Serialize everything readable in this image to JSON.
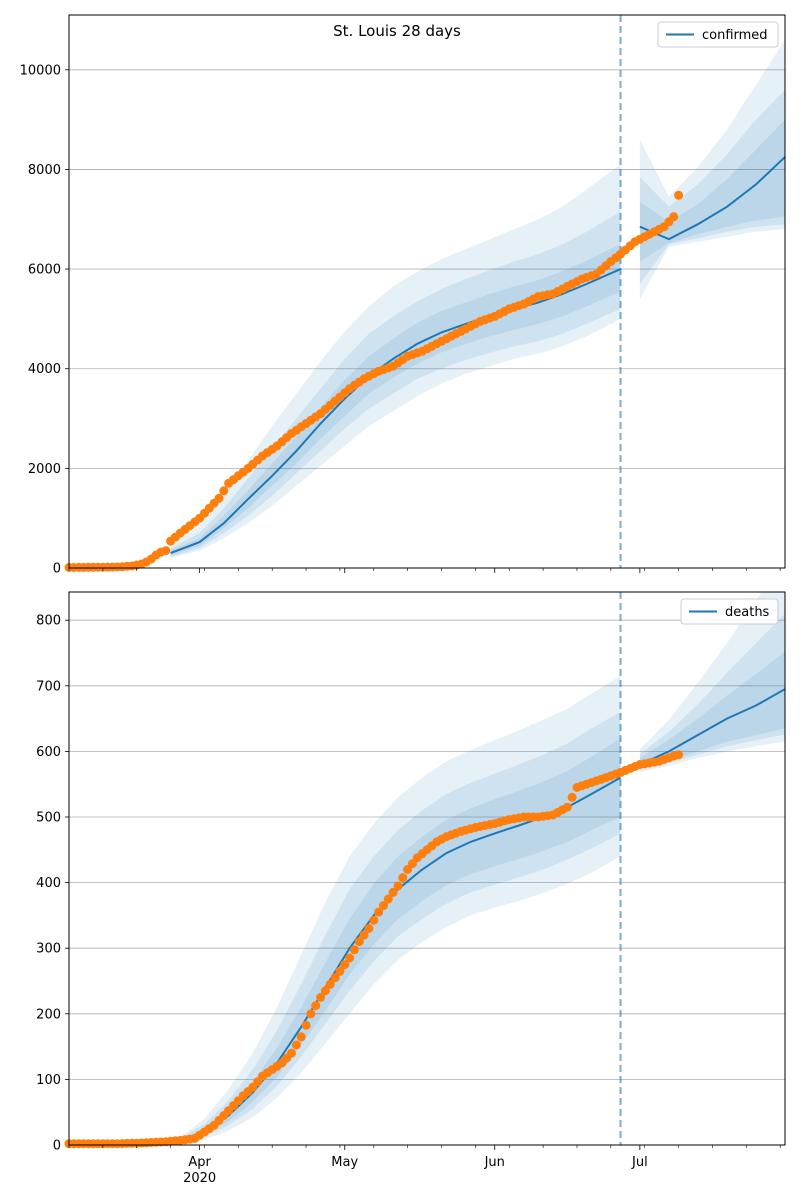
{
  "figure": {
    "title": "St. Louis 28 days"
  },
  "chart_data": [
    {
      "type": "line",
      "name": "confirmed-panel",
      "legend": "confirmed",
      "legend_position": "top-right",
      "ylim": [
        0,
        11100
      ],
      "yticks": [
        0,
        2000,
        4000,
        6000,
        8000,
        10000
      ],
      "xlim": [
        "2020-03-05",
        "2020-07-31"
      ],
      "xticks": [
        "Apr",
        "May",
        "Jun",
        "Jul"
      ],
      "xtick_year": "2020",
      "grid": "horizontal",
      "forecast_start": "2020-06-27",
      "colors": {
        "line": "#1f77b4",
        "band": "#1f77b4",
        "observed": "#ff7f0e",
        "vline": "#1f77b4"
      },
      "model": {
        "x": [
          "2020-03-26",
          "2020-04-01",
          "2020-04-06",
          "2020-04-11",
          "2020-04-16",
          "2020-04-21",
          "2020-04-26",
          "2020-05-01",
          "2020-05-06",
          "2020-05-11",
          "2020-05-16",
          "2020-05-21",
          "2020-05-26",
          "2020-05-31",
          "2020-06-05",
          "2020-06-10",
          "2020-06-15",
          "2020-06-20",
          "2020-06-27",
          "2020-07-01",
          "2020-07-07",
          "2020-07-13",
          "2020-07-19",
          "2020-07-25",
          "2020-07-31"
        ],
        "median": [
          300,
          520,
          900,
          1380,
          1850,
          2350,
          2900,
          3400,
          3850,
          4200,
          4500,
          4730,
          4900,
          5060,
          5200,
          5330,
          5500,
          5700,
          6000,
          6850,
          6600,
          6900,
          7250,
          7700,
          8250
        ],
        "band_50": [
          [
            250,
            350
          ],
          [
            450,
            600
          ],
          [
            800,
            1050
          ],
          [
            1200,
            1560
          ],
          [
            1650,
            2100
          ],
          [
            2100,
            2640
          ],
          [
            2600,
            3230
          ],
          [
            3050,
            3780
          ],
          [
            3500,
            4250
          ],
          [
            3820,
            4600
          ],
          [
            4100,
            4920
          ],
          [
            4330,
            5160
          ],
          [
            4500,
            5330
          ],
          [
            4650,
            5500
          ],
          [
            4780,
            5650
          ],
          [
            4900,
            5780
          ],
          [
            5050,
            5960
          ],
          [
            5250,
            6170
          ],
          [
            5550,
            6500
          ],
          [
            6150,
            7350
          ],
          [
            6520,
            6950
          ],
          [
            6700,
            7300
          ],
          [
            6850,
            7800
          ],
          [
            6980,
            8400
          ],
          [
            7050,
            9000
          ]
        ],
        "band_80": [
          [
            220,
            390
          ],
          [
            400,
            700
          ],
          [
            700,
            1200
          ],
          [
            1050,
            1800
          ],
          [
            1450,
            2400
          ],
          [
            1900,
            3000
          ],
          [
            2350,
            3600
          ],
          [
            2800,
            4200
          ],
          [
            3200,
            4700
          ],
          [
            3500,
            5050
          ],
          [
            3800,
            5350
          ],
          [
            4000,
            5600
          ],
          [
            4180,
            5800
          ],
          [
            4320,
            5980
          ],
          [
            4450,
            6150
          ],
          [
            4550,
            6300
          ],
          [
            4700,
            6500
          ],
          [
            4900,
            6750
          ],
          [
            5200,
            7150
          ],
          [
            5700,
            7850
          ],
          [
            6500,
            7250
          ],
          [
            6620,
            7700
          ],
          [
            6750,
            8300
          ],
          [
            6850,
            9000
          ],
          [
            6900,
            9600
          ]
        ],
        "band_95": [
          [
            200,
            450
          ],
          [
            350,
            850
          ],
          [
            600,
            1450
          ],
          [
            900,
            2150
          ],
          [
            1250,
            2850
          ],
          [
            1650,
            3500
          ],
          [
            2050,
            4150
          ],
          [
            2450,
            4750
          ],
          [
            2850,
            5250
          ],
          [
            3150,
            5650
          ],
          [
            3450,
            5950
          ],
          [
            3700,
            6200
          ],
          [
            3900,
            6400
          ],
          [
            4050,
            6600
          ],
          [
            4200,
            6800
          ],
          [
            4300,
            7000
          ],
          [
            4450,
            7250
          ],
          [
            4650,
            7600
          ],
          [
            5000,
            8100
          ],
          [
            5400,
            8600
          ],
          [
            6450,
            7450
          ],
          [
            6550,
            8050
          ],
          [
            6650,
            8800
          ],
          [
            6750,
            9700
          ],
          [
            6800,
            10600
          ]
        ]
      },
      "observed": {
        "x": [
          "2020-03-05",
          "2020-03-10",
          "2020-03-15",
          "2020-03-18",
          "2020-03-20",
          "2020-03-21",
          "2020-03-22",
          "2020-03-23",
          "2020-03-24",
          "2020-03-25",
          "2020-03-26",
          "2020-03-28",
          "2020-03-30",
          "2020-04-01",
          "2020-04-03",
          "2020-04-05",
          "2020-04-07",
          "2020-04-09",
          "2020-04-11",
          "2020-04-14",
          "2020-04-17",
          "2020-04-20",
          "2020-04-23",
          "2020-04-26",
          "2020-04-29",
          "2020-05-02",
          "2020-05-05",
          "2020-05-08",
          "2020-05-11",
          "2020-05-14",
          "2020-05-17",
          "2020-05-20",
          "2020-05-23",
          "2020-05-26",
          "2020-05-29",
          "2020-06-01",
          "2020-06-04",
          "2020-06-07",
          "2020-06-10",
          "2020-06-13",
          "2020-06-16",
          "2020-06-19",
          "2020-06-22",
          "2020-06-25",
          "2020-06-27",
          "2020-06-30",
          "2020-07-03",
          "2020-07-06",
          "2020-07-08",
          "2020-07-09"
        ],
        "y": [
          10,
          15,
          20,
          40,
          80,
          120,
          180,
          260,
          320,
          350,
          540,
          700,
          850,
          1000,
          1200,
          1400,
          1700,
          1850,
          2000,
          2250,
          2450,
          2700,
          2900,
          3100,
          3350,
          3600,
          3800,
          3950,
          4050,
          4250,
          4350,
          4500,
          4650,
          4800,
          4950,
          5050,
          5200,
          5300,
          5450,
          5500,
          5650,
          5800,
          5900,
          6150,
          6300,
          6550,
          6700,
          6850,
          7050,
          7480
        ]
      }
    },
    {
      "type": "line",
      "name": "deaths-panel",
      "legend": "deaths",
      "legend_position": "top-right",
      "ylim": [
        0,
        843
      ],
      "yticks": [
        0,
        100,
        200,
        300,
        400,
        500,
        600,
        700,
        800
      ],
      "xlim": [
        "2020-03-05",
        "2020-07-31"
      ],
      "xticks": [
        "Apr",
        "May",
        "Jun",
        "Jul"
      ],
      "xtick_year": "2020",
      "grid": "horizontal",
      "forecast_start": "2020-06-27",
      "colors": {
        "line": "#1f77b4",
        "band": "#1f77b4",
        "observed": "#ff7f0e",
        "vline": "#1f77b4"
      },
      "model": {
        "x": [
          "2020-03-28",
          "2020-04-02",
          "2020-04-07",
          "2020-04-12",
          "2020-04-17",
          "2020-04-22",
          "2020-04-27",
          "2020-05-02",
          "2020-05-07",
          "2020-05-12",
          "2020-05-17",
          "2020-05-22",
          "2020-05-27",
          "2020-06-01",
          "2020-06-06",
          "2020-06-11",
          "2020-06-16",
          "2020-06-21",
          "2020-06-27",
          "2020-07-01",
          "2020-07-07",
          "2020-07-13",
          "2020-07-19",
          "2020-07-25",
          "2020-07-31"
        ],
        "median": [
          5,
          20,
          45,
          80,
          125,
          180,
          240,
          300,
          350,
          390,
          420,
          445,
          462,
          475,
          487,
          500,
          515,
          535,
          560,
          580,
          600,
          625,
          650,
          670,
          695
        ],
        "band_50": [
          [
            3,
            8
          ],
          [
            15,
            26
          ],
          [
            36,
            56
          ],
          [
            66,
            96
          ],
          [
            104,
            148
          ],
          [
            152,
            210
          ],
          [
            205,
            278
          ],
          [
            260,
            345
          ],
          [
            306,
            398
          ],
          [
            344,
            440
          ],
          [
            372,
            470
          ],
          [
            396,
            496
          ],
          [
            413,
            513
          ],
          [
            425,
            527
          ],
          [
            436,
            540
          ],
          [
            448,
            554
          ],
          [
            462,
            570
          ],
          [
            480,
            592
          ],
          [
            500,
            620
          ],
          [
            574,
            590
          ],
          [
            585,
            618
          ],
          [
            600,
            650
          ],
          [
            615,
            685
          ],
          [
            625,
            718
          ],
          [
            635,
            752
          ]
        ],
        "band_80": [
          [
            2,
            10
          ],
          [
            12,
            32
          ],
          [
            30,
            68
          ],
          [
            55,
            115
          ],
          [
            90,
            175
          ],
          [
            135,
            245
          ],
          [
            185,
            320
          ],
          [
            235,
            390
          ],
          [
            280,
            440
          ],
          [
            318,
            480
          ],
          [
            345,
            510
          ],
          [
            368,
            535
          ],
          [
            385,
            552
          ],
          [
            397,
            566
          ],
          [
            408,
            580
          ],
          [
            420,
            595
          ],
          [
            435,
            612
          ],
          [
            452,
            635
          ],
          [
            475,
            660
          ],
          [
            571,
            596
          ],
          [
            582,
            630
          ],
          [
            595,
            672
          ],
          [
            608,
            720
          ],
          [
            617,
            765
          ],
          [
            626,
            810
          ]
        ],
        "band_95": [
          [
            1,
            12
          ],
          [
            8,
            40
          ],
          [
            22,
            85
          ],
          [
            42,
            140
          ],
          [
            72,
            210
          ],
          [
            110,
            290
          ],
          [
            155,
            370
          ],
          [
            200,
            440
          ],
          [
            245,
            490
          ],
          [
            282,
            530
          ],
          [
            310,
            560
          ],
          [
            332,
            585
          ],
          [
            350,
            602
          ],
          [
            362,
            617
          ],
          [
            372,
            632
          ],
          [
            384,
            648
          ],
          [
            398,
            665
          ],
          [
            415,
            688
          ],
          [
            440,
            715
          ],
          [
            568,
            603
          ],
          [
            578,
            648
          ],
          [
            590,
            705
          ],
          [
            600,
            765
          ],
          [
            608,
            830
          ],
          [
            615,
            900
          ]
        ]
      },
      "observed": {
        "x": [
          "2020-03-05",
          "2020-03-15",
          "2020-03-20",
          "2020-03-25",
          "2020-03-28",
          "2020-03-31",
          "2020-04-02",
          "2020-04-04",
          "2020-04-06",
          "2020-04-08",
          "2020-04-10",
          "2020-04-12",
          "2020-04-14",
          "2020-04-16",
          "2020-04-18",
          "2020-04-20",
          "2020-04-22",
          "2020-04-24",
          "2020-04-26",
          "2020-04-28",
          "2020-04-30",
          "2020-05-02",
          "2020-05-04",
          "2020-05-06",
          "2020-05-08",
          "2020-05-10",
          "2020-05-12",
          "2020-05-14",
          "2020-05-16",
          "2020-05-18",
          "2020-05-20",
          "2020-05-22",
          "2020-05-25",
          "2020-05-28",
          "2020-06-01",
          "2020-06-04",
          "2020-06-07",
          "2020-06-10",
          "2020-06-13",
          "2020-06-16",
          "2020-06-18",
          "2020-06-20",
          "2020-06-24",
          "2020-06-27",
          "2020-07-01",
          "2020-07-05",
          "2020-07-08",
          "2020-07-09"
        ],
        "y": [
          2,
          2,
          3,
          5,
          7,
          10,
          20,
          30,
          45,
          60,
          75,
          88,
          105,
          115,
          125,
          140,
          165,
          200,
          225,
          245,
          265,
          285,
          310,
          330,
          355,
          375,
          395,
          420,
          438,
          450,
          462,
          470,
          478,
          484,
          490,
          496,
          500,
          500,
          503,
          515,
          545,
          550,
          560,
          568,
          580,
          585,
          593,
          595
        ]
      }
    }
  ]
}
